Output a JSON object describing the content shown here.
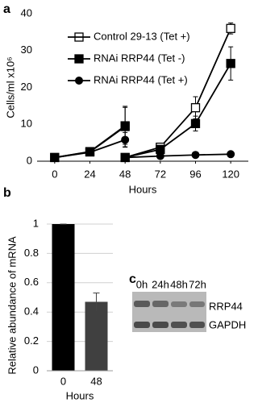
{
  "chart_data": [
    {
      "type": "line",
      "panel_label": "a",
      "x_label": "Hours",
      "y_label": "Cells/ml x10⁶",
      "x": [
        0,
        24,
        48,
        48,
        48,
        72,
        96,
        120
      ],
      "series": [
        {
          "name": "Control 29-13 (Tet +)",
          "color": "#000000",
          "marker": "open-square",
          "values": [
            1.0,
            2.6,
            9.6,
            null,
            1.0,
            3.8,
            14.5,
            36.0
          ],
          "errors": [
            0.2,
            0.6,
            5.0,
            null,
            0.2,
            0.5,
            3.0,
            1.5
          ]
        },
        {
          "name": "RNAi RRP44 (Tet -)",
          "color": "#000000",
          "marker": "filled-square",
          "values": [
            1.0,
            2.5,
            9.4,
            null,
            1.0,
            3.2,
            10.2,
            26.5
          ],
          "errors": [
            0.2,
            0.8,
            5.5,
            null,
            0.2,
            0.5,
            2.0,
            4.5
          ]
        },
        {
          "name": "RNAi RRP44 (Tet +)",
          "color": "#000000",
          "marker": "filled-circle",
          "values": [
            1.0,
            2.4,
            5.8,
            null,
            1.0,
            1.4,
            1.7,
            1.9
          ],
          "errors": [
            0.2,
            0.5,
            2.0,
            null,
            0.1,
            0.2,
            0.2,
            0.2
          ]
        }
      ],
      "xlim": [
        -12,
        132
      ],
      "xticks": [
        0,
        24,
        48,
        72,
        96,
        120
      ],
      "ylim": [
        0,
        40
      ],
      "yticks": [
        0,
        10,
        20,
        30,
        40
      ],
      "legend": "top-left"
    },
    {
      "type": "bar",
      "panel_label": "b",
      "x_label": "Hours",
      "y_label": "Relative abundance of mRNA",
      "categories": [
        "0",
        "48"
      ],
      "values": [
        1,
        0.47
      ],
      "errors": [
        0,
        0.06
      ],
      "colors": [
        "#000000",
        "#404040"
      ],
      "ylim": [
        0,
        1
      ],
      "yticks": [
        0,
        0.2,
        0.4,
        0.6,
        0.8,
        1
      ],
      "grid": true
    }
  ],
  "blot": {
    "panel_label": "c",
    "lanes": [
      "0h",
      "24h",
      "48h",
      "72h"
    ],
    "bands": [
      "RRP44",
      "GAPDH"
    ]
  }
}
